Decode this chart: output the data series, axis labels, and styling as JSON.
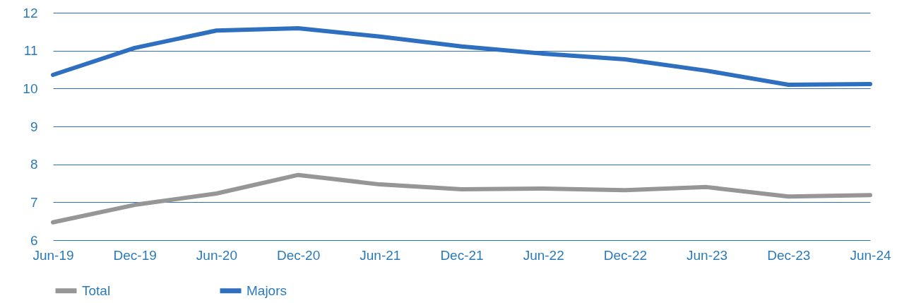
{
  "chart_data": {
    "type": "line",
    "categories": [
      "Jun-19",
      "Dec-19",
      "Jun-20",
      "Dec-20",
      "Jun-21",
      "Dec-21",
      "Jun-22",
      "Dec-22",
      "Jun-23",
      "Dec-23",
      "Jun-24"
    ],
    "series": [
      {
        "name": "Total",
        "color": "#969696",
        "values": [
          6.47,
          6.93,
          7.23,
          7.72,
          7.47,
          7.34,
          7.36,
          7.32,
          7.4,
          7.15,
          7.19
        ]
      },
      {
        "name": "Majors",
        "color": "#2e6fc0",
        "values": [
          10.36,
          11.07,
          11.53,
          11.59,
          11.37,
          11.11,
          10.92,
          10.77,
          10.47,
          10.1,
          10.12
        ]
      }
    ],
    "ylim": [
      6,
      12
    ],
    "yticks": [
      6,
      7,
      8,
      9,
      10,
      11,
      12
    ],
    "grid": "y",
    "legend": "bottom",
    "marker": "none",
    "line_style": "solid"
  }
}
